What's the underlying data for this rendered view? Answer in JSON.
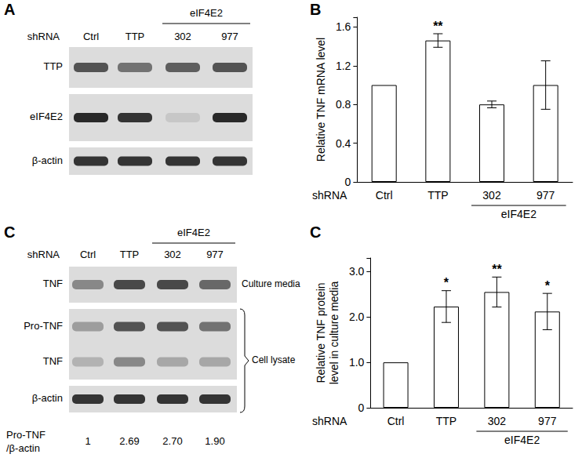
{
  "panels": [
    {
      "letter": "A",
      "x_title": "shRNA",
      "lanes": [
        "Ctrl",
        "TTP",
        "302",
        "977"
      ],
      "groups": [
        {
          "label": "eIF4E2",
          "lanes": [
            "302",
            "977"
          ]
        }
      ],
      "membranes": [
        {
          "rows": [
            {
              "label": "TTP",
              "band_intensity": [
                0.7,
                0.55,
                0.65,
                0.7
              ]
            }
          ]
        },
        {
          "rows": [
            {
              "label": "eIF4E2",
              "band_intensity": [
                0.9,
                0.85,
                0.15,
                0.9
              ]
            }
          ]
        },
        {
          "rows": [
            {
              "label": "β-actin",
              "band_intensity": [
                0.85,
                0.85,
                0.85,
                0.85
              ]
            }
          ]
        }
      ]
    },
    {
      "letter": "C",
      "x_title": "shRNA",
      "lanes": [
        "Ctrl",
        "TTP",
        "302",
        "977"
      ],
      "groups": [
        {
          "label": "eIF4E2",
          "lanes": [
            "302",
            "977"
          ]
        }
      ],
      "membranes": [
        {
          "section": "Culture media",
          "rows": [
            {
              "label": "TNF",
              "band_intensity": [
                0.45,
                0.75,
                0.75,
                0.6
              ]
            }
          ]
        },
        {
          "section": "Cell lysate",
          "rows": [
            {
              "label": "Pro-TNF",
              "band_intensity": [
                0.35,
                0.7,
                0.7,
                0.55
              ]
            },
            {
              "label": "TNF",
              "band_intensity": [
                0.25,
                0.45,
                0.3,
                0.3
              ]
            }
          ]
        },
        {
          "section": "Cell lysate",
          "rows": [
            {
              "label": "β-actin",
              "band_intensity": [
                0.85,
                0.85,
                0.85,
                0.85
              ]
            }
          ]
        }
      ],
      "ratio_row": {
        "label": [
          "Pro-TNF",
          "/β-actin"
        ],
        "values": [
          1,
          2.69,
          2.7,
          1.9
        ],
        "value_labels": [
          "1",
          "2.69",
          "2.70",
          "1.90"
        ]
      }
    }
  ],
  "chart_data": [
    {
      "panel_label": "B",
      "type": "bar",
      "categories": [
        "Ctrl",
        "TTP",
        "302",
        "977"
      ],
      "values": [
        1.0,
        1.46,
        0.8,
        1.0
      ],
      "errors": [
        null,
        0.07,
        0.035,
        0.25
      ],
      "x_label": "shRNA",
      "y_label": [
        "Relative TNF mRNA level"
      ],
      "groups": [
        {
          "label": "eIF4E2",
          "categories": [
            "302",
            "977"
          ]
        }
      ],
      "annotations": [
        {
          "category": "TTP",
          "text": "**"
        }
      ],
      "ylim": [
        0,
        1.7
      ],
      "yticks": [
        0,
        0.4,
        0.8,
        1.2,
        1.6
      ],
      "color": "#ffffff",
      "grid": false
    },
    {
      "panel_label": "C",
      "type": "bar",
      "categories": [
        "Ctrl",
        "TTP",
        "302",
        "977"
      ],
      "values": [
        1.0,
        2.23,
        2.55,
        2.12
      ],
      "errors": [
        null,
        0.35,
        0.33,
        0.4
      ],
      "x_label": "shRNA",
      "y_label": [
        "Relative TNF protein",
        "level in culture media"
      ],
      "groups": [
        {
          "label": "eIF4E2",
          "categories": [
            "302",
            "977"
          ]
        }
      ],
      "annotations": [
        {
          "category": "TTP",
          "text": "*"
        },
        {
          "category": "302",
          "text": "**"
        },
        {
          "category": "977",
          "text": "*"
        }
      ],
      "ylim": [
        0,
        3.3
      ],
      "yticks": [
        0,
        {
          "value": 1,
          "label": "1.0"
        },
        {
          "value": 2,
          "label": "2.0"
        },
        {
          "value": 3,
          "label": "3.0"
        }
      ],
      "color": "#ffffff",
      "grid": false
    }
  ]
}
